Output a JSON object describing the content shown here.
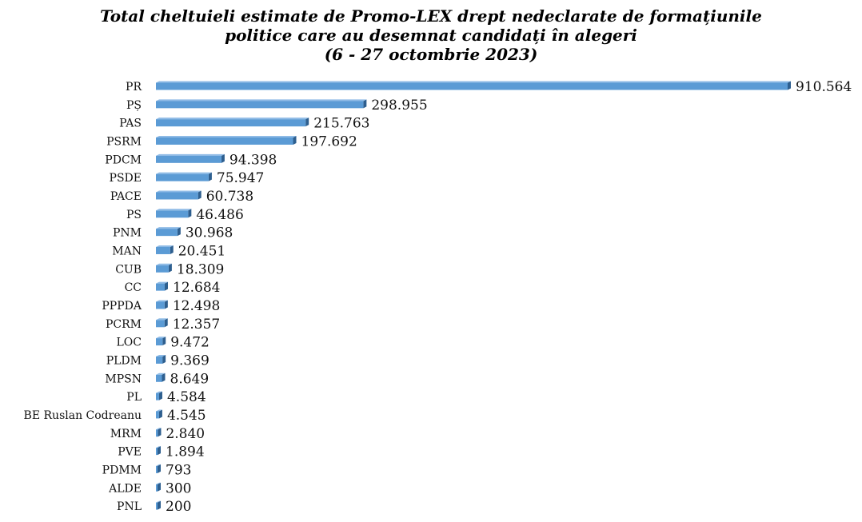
{
  "chart_data": {
    "type": "bar",
    "orientation": "horizontal",
    "title_lines": [
      "Total cheltuieli estimate de Promo-LEX drept nedeclarate de formațiunile",
      "politice care au desemnat candidați în alegeri",
      "(6 - 27 octombrie 2023)"
    ],
    "categories": [
      "PR",
      "PȘ",
      "PAS",
      "PSRM",
      "PDCM",
      "PSDE",
      "PACE",
      "PS",
      "PNM",
      "MAN",
      "CUB",
      "CC",
      "PPPDA",
      "PCRM",
      "LOC",
      "PLDM",
      "MPSN",
      "PL",
      "BE Ruslan Codreanu",
      "MRM",
      "PVE",
      "PDMM",
      "ALDE",
      "PNL"
    ],
    "values": [
      910564,
      298955,
      215763,
      197692,
      94398,
      75947,
      60738,
      46486,
      30968,
      20451,
      18309,
      12684,
      12498,
      12357,
      9472,
      9369,
      8649,
      4584,
      4545,
      2840,
      1894,
      793,
      300,
      200
    ],
    "value_labels": [
      "910.564",
      "298.955",
      "215.763",
      "197.692",
      "94.398",
      "75.947",
      "60.738",
      "46.486",
      "30.968",
      "20.451",
      "18.309",
      "12.684",
      "12.498",
      "12.357",
      "9.472",
      "9.369",
      "8.649",
      "4.584",
      "4.545",
      "2.840",
      "1.894",
      "793",
      "300",
      "200"
    ],
    "xlabel": "",
    "ylabel": "",
    "xlim": [
      0,
      910564
    ],
    "grid": false,
    "legend": "none",
    "bar_color": "#5b9bd5",
    "bar_shadow_color": "#2e5f8f"
  }
}
